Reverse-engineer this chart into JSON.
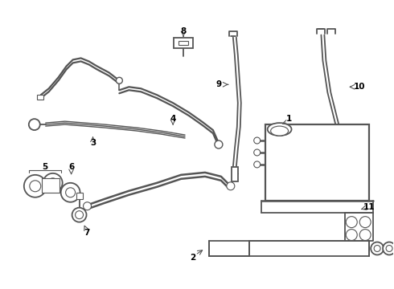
{
  "background_color": "#ffffff",
  "line_color": "#555555",
  "fig_width": 4.9,
  "fig_height": 3.6,
  "dpi": 100,
  "border": 10
}
